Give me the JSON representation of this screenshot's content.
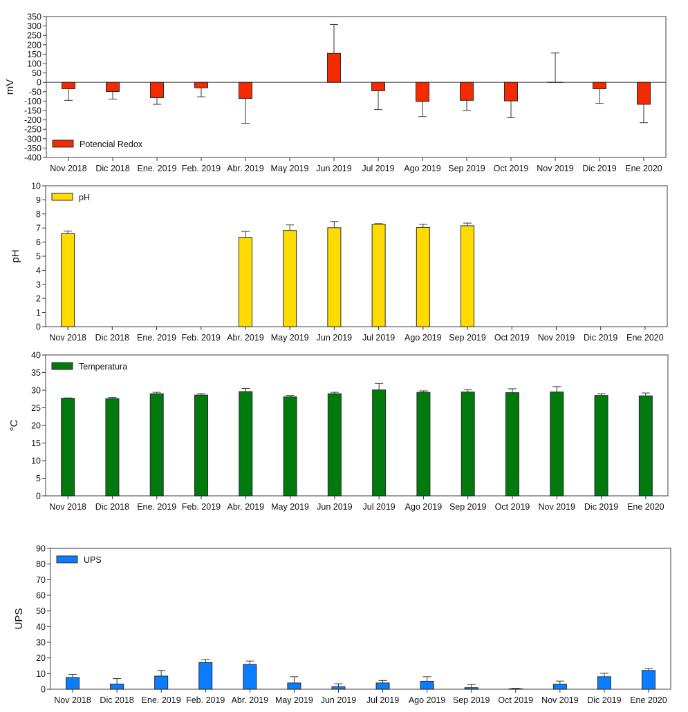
{
  "chart_data": [
    {
      "type": "bar",
      "title": "",
      "xlabel": "",
      "ylabel": "mV",
      "ylim": [
        -400,
        350
      ],
      "yticks": [
        350,
        300,
        250,
        200,
        150,
        100,
        50,
        0,
        -50,
        -100,
        -150,
        -200,
        -250,
        -300,
        -350,
        -400
      ],
      "legend": "bottom-left",
      "grid": false,
      "color": "#f52a00",
      "categories": [
        "Nov 2018",
        "Dic 2018",
        "Ene. 2019",
        "Feb. 2019",
        "Abr. 2019",
        "May 2019",
        "Jun 2019",
        "Jul 2019",
        "Ago 2019",
        "Sep 2019",
        "Oct 2019",
        "Nov 2019",
        "Dic 2019",
        "Ene 2020"
      ],
      "series": [
        {
          "name": "Potencial Redox",
          "values": [
            -34,
            -49,
            -82,
            -29,
            -86,
            null,
            154,
            -45,
            -102,
            -96,
            -99,
            0,
            -34,
            -117
          ],
          "error_ends": [
            -96,
            -89,
            -117,
            -77,
            -219,
            null,
            308,
            -145,
            -182,
            -151,
            -188,
            156,
            -112,
            -215
          ]
        }
      ]
    },
    {
      "type": "bar",
      "title": "",
      "xlabel": "",
      "ylabel": "pH",
      "ylim": [
        0,
        10
      ],
      "yticks": [
        10,
        9,
        8,
        7,
        6,
        5,
        4,
        3,
        2,
        1,
        0
      ],
      "legend": "top-left",
      "grid": false,
      "color": "#ffdb00",
      "categories": [
        "Nov 2018",
        "Dic 2018",
        "Ene. 2019",
        "Feb. 2019",
        "Abr. 2019",
        "May 2019",
        "Jun 2019",
        "Jul 2019",
        "Ago 2019",
        "Sep 2019",
        "Oct 2019",
        "Nov 2019",
        "Dic 2019",
        "Ene 2020"
      ],
      "series": [
        {
          "name": "pH",
          "values": [
            6.6,
            null,
            null,
            null,
            6.34,
            6.83,
            7.02,
            7.27,
            7.04,
            7.16,
            null,
            null,
            null,
            null
          ],
          "error_ends": [
            6.78,
            null,
            null,
            null,
            6.76,
            7.22,
            7.46,
            7.31,
            7.27,
            7.35,
            null,
            null,
            null,
            null
          ]
        }
      ]
    },
    {
      "type": "bar",
      "title": "",
      "xlabel": "",
      "ylabel": "°C",
      "ylim": [
        0,
        40
      ],
      "yticks": [
        40,
        35,
        30,
        25,
        20,
        15,
        10,
        5,
        0
      ],
      "legend": "top-left",
      "grid": false,
      "color": "#007a0c",
      "categories": [
        "Nov 2018",
        "Dic 2018",
        "Ene. 2019",
        "Feb. 2019",
        "Abr. 2019",
        "May 2019",
        "Jun 2019",
        "Jul 2019",
        "Ago 2019",
        "Sep 2019",
        "Oct 2019",
        "Nov 2019",
        "Dic 2019",
        "Ene 2020"
      ],
      "series": [
        {
          "name": "Temperatura",
          "values": [
            27.7,
            27.6,
            29.0,
            28.6,
            29.6,
            28.1,
            29.0,
            30.1,
            29.4,
            29.5,
            29.3,
            29.5,
            28.5,
            28.4
          ],
          "error_ends": [
            27.8,
            27.9,
            29.4,
            29.0,
            30.5,
            28.5,
            29.4,
            31.9,
            29.8,
            30.1,
            30.4,
            31.0,
            29.0,
            29.2
          ]
        }
      ]
    },
    {
      "type": "bar",
      "title": "",
      "xlabel": "",
      "ylabel": "UPS",
      "ylim": [
        0,
        90
      ],
      "yticks": [
        90,
        80,
        70,
        60,
        50,
        40,
        30,
        20,
        10,
        0
      ],
      "legend": "top-left",
      "grid": false,
      "color": "#0a7cff",
      "categories": [
        "Nov 2018",
        "Dic 2018",
        "Ene. 2019",
        "Feb. 2019",
        "Abr. 2019",
        "May 2019",
        "Jun 2019",
        "Jul 2019",
        "Ago 2019",
        "Sep 2019",
        "Oct 2019",
        "Nov 2019",
        "Dic 2019",
        "Ene 2020"
      ],
      "series": [
        {
          "name": "UPS",
          "values": [
            7.5,
            3.3,
            8.4,
            17.0,
            15.8,
            4.0,
            1.6,
            4.0,
            5.1,
            1.0,
            0.3,
            3.2,
            8.0,
            12.0
          ],
          "error_ends": [
            9.5,
            6.8,
            12.0,
            19.0,
            18.0,
            8.0,
            3.5,
            5.6,
            8.0,
            3.0,
            0.6,
            5.2,
            10.2,
            13.3
          ]
        }
      ]
    }
  ]
}
